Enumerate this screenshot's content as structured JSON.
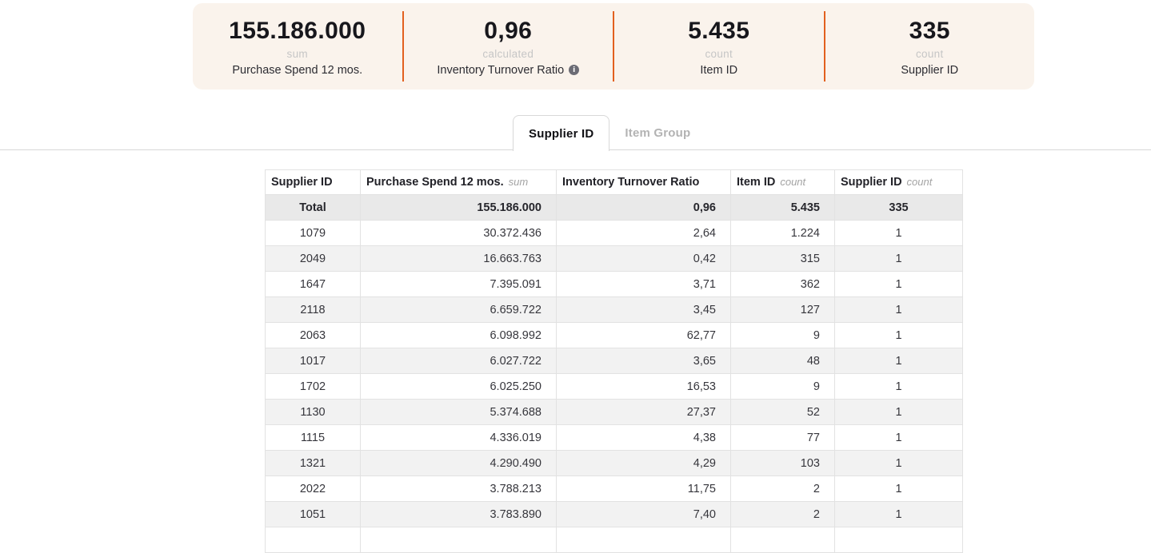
{
  "colors": {
    "banner_bg": "#faf3ec",
    "accent_orange": "#e2601f",
    "text_dark": "#17171c",
    "label_light": "#c6c6c6",
    "total_row_bg": "#e9e9e9",
    "alt_row_bg": "#f2f2f2"
  },
  "kpis": [
    {
      "value": "155.186.000",
      "aggregation": "sum",
      "label": "Purchase Spend 12 mos.",
      "has_info": false
    },
    {
      "value": "0,96",
      "aggregation": "calculated",
      "label": "Inventory Turnover Ratio",
      "has_info": true
    },
    {
      "value": "5.435",
      "aggregation": "count",
      "label": "Item ID",
      "has_info": false
    },
    {
      "value": "335",
      "aggregation": "count",
      "label": "Supplier ID",
      "has_info": false
    }
  ],
  "tabs": [
    {
      "label": "Supplier ID",
      "active": true
    },
    {
      "label": "Item Group",
      "active": false
    }
  ],
  "table": {
    "columns": [
      {
        "label": "Supplier ID",
        "suffix": ""
      },
      {
        "label": "Purchase Spend 12 mos.",
        "suffix": "sum"
      },
      {
        "label": "Inventory Turnover Ratio",
        "suffix": ""
      },
      {
        "label": "Item ID",
        "suffix": "count"
      },
      {
        "label": "Supplier ID",
        "suffix": "count"
      }
    ],
    "total_row": [
      "Total",
      "155.186.000",
      "0,96",
      "5.435",
      "335"
    ],
    "rows": [
      [
        "1079",
        "30.372.436",
        "2,64",
        "1.224",
        "1"
      ],
      [
        "2049",
        "16.663.763",
        "0,42",
        "315",
        "1"
      ],
      [
        "1647",
        "7.395.091",
        "3,71",
        "362",
        "1"
      ],
      [
        "2118",
        "6.659.722",
        "3,45",
        "127",
        "1"
      ],
      [
        "2063",
        "6.098.992",
        "62,77",
        "9",
        "1"
      ],
      [
        "1017",
        "6.027.722",
        "3,65",
        "48",
        "1"
      ],
      [
        "1702",
        "6.025.250",
        "16,53",
        "9",
        "1"
      ],
      [
        "1130",
        "5.374.688",
        "27,37",
        "52",
        "1"
      ],
      [
        "1115",
        "4.336.019",
        "4,38",
        "77",
        "1"
      ],
      [
        "1321",
        "4.290.490",
        "4,29",
        "103",
        "1"
      ],
      [
        "2022",
        "3.788.213",
        "11,75",
        "2",
        "1"
      ],
      [
        "1051",
        "3.783.890",
        "7,40",
        "2",
        "1"
      ]
    ]
  }
}
